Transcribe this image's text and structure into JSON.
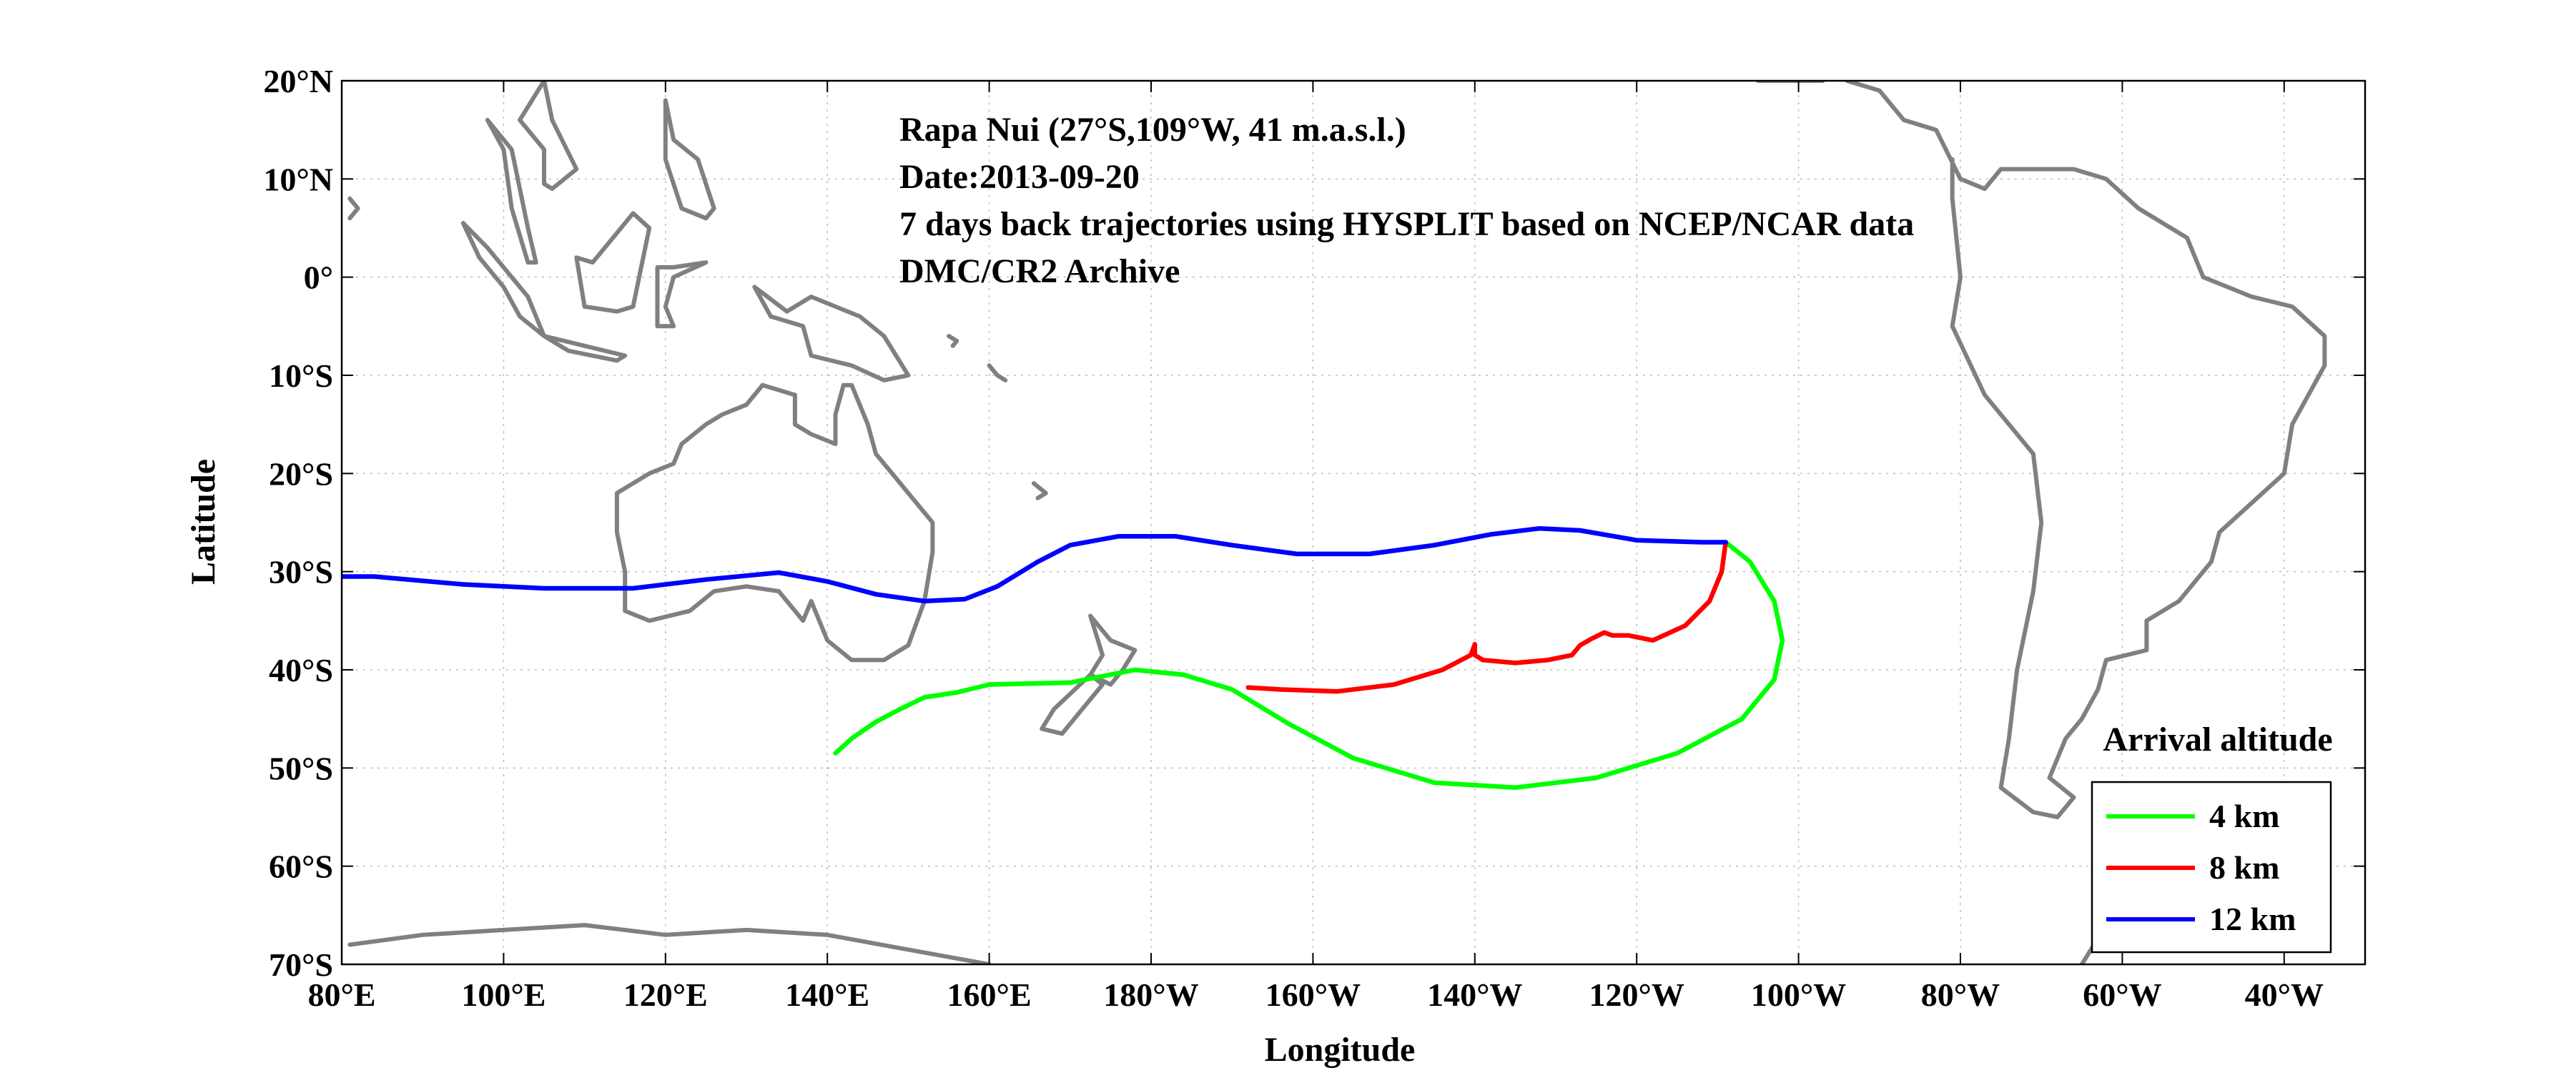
{
  "map": {
    "lon_range": [
      80,
      330
    ],
    "lat_range": [
      -70,
      20
    ],
    "x_ticks": [
      {
        "lon": 80,
        "label": "80°E"
      },
      {
        "lon": 100,
        "label": "100°E"
      },
      {
        "lon": 120,
        "label": "120°E"
      },
      {
        "lon": 140,
        "label": "140°E"
      },
      {
        "lon": 160,
        "label": "160°E"
      },
      {
        "lon": 180,
        "label": "180°W"
      },
      {
        "lon": 200,
        "label": "160°W"
      },
      {
        "lon": 220,
        "label": "140°W"
      },
      {
        "lon": 240,
        "label": "120°W"
      },
      {
        "lon": 260,
        "label": "100°W"
      },
      {
        "lon": 280,
        "label": "80°W"
      },
      {
        "lon": 300,
        "label": "60°W"
      },
      {
        "lon": 320,
        "label": "40°W"
      }
    ],
    "y_ticks": [
      {
        "lat": 20,
        "label": "20°N"
      },
      {
        "lat": 10,
        "label": "10°N"
      },
      {
        "lat": 0,
        "label": "0°"
      },
      {
        "lat": -10,
        "label": "10°S"
      },
      {
        "lat": -20,
        "label": "20°S"
      },
      {
        "lat": -30,
        "label": "30°S"
      },
      {
        "lat": -40,
        "label": "40°S"
      },
      {
        "lat": -50,
        "label": "50°S"
      },
      {
        "lat": -60,
        "label": "60°S"
      },
      {
        "lat": -70,
        "label": "70°S"
      }
    ],
    "xlabel": "Longitude",
    "ylabel": "Latitude",
    "grid": true,
    "annotations": [
      "Rapa Nui (27°S,109°W, 41 m.a.s.l.)",
      "Date:2013-09-20",
      "7 days back trajectories using HYSPLIT based on NCEP/NCAR data",
      "DMC/CR2 Archive"
    ],
    "legend": {
      "title": "Arrival altitude",
      "placement": "bottom-right",
      "items": [
        {
          "label": "4 km",
          "color": "#00ff00"
        },
        {
          "label": "8 km",
          "color": "#ff0000"
        },
        {
          "label": "12 km",
          "color": "#0000ff"
        }
      ]
    },
    "coast_color": "#808080",
    "trajectories": [
      {
        "label": "4 km",
        "color": "#00ff00",
        "points": [
          [
            251,
            -27
          ],
          [
            254,
            -29
          ],
          [
            257,
            -33
          ],
          [
            258,
            -37
          ],
          [
            257,
            -41
          ],
          [
            253,
            -45
          ],
          [
            245,
            -48.5
          ],
          [
            235,
            -51
          ],
          [
            225,
            -52
          ],
          [
            215,
            -51.5
          ],
          [
            205,
            -49
          ],
          [
            197,
            -45.5
          ],
          [
            190,
            -42
          ],
          [
            184,
            -40.5
          ],
          [
            178,
            -40
          ],
          [
            170,
            -41.3
          ],
          [
            160,
            -41.5
          ],
          [
            156,
            -42.3
          ],
          [
            152,
            -42.8
          ],
          [
            149,
            -44
          ],
          [
            146,
            -45.3
          ],
          [
            143,
            -47
          ],
          [
            141,
            -48.5
          ]
        ]
      },
      {
        "label": "8 km",
        "color": "#ff0000",
        "points": [
          [
            251,
            -27
          ],
          [
            250.5,
            -30
          ],
          [
            249,
            -33
          ],
          [
            246,
            -35.5
          ],
          [
            242,
            -37
          ],
          [
            239,
            -36.5
          ],
          [
            237,
            -36.5
          ],
          [
            236,
            -36.2
          ],
          [
            234.5,
            -36.8
          ],
          [
            233,
            -37.5
          ],
          [
            232,
            -38.5
          ],
          [
            229,
            -39
          ],
          [
            225,
            -39.3
          ],
          [
            221,
            -39
          ],
          [
            220,
            -38.5
          ],
          [
            220,
            -37.4
          ],
          [
            219.5,
            -38.5
          ],
          [
            216,
            -40
          ],
          [
            210,
            -41.5
          ],
          [
            203,
            -42.2
          ],
          [
            196,
            -42
          ],
          [
            192,
            -41.8
          ]
        ]
      },
      {
        "label": "12 km",
        "color": "#0000ff",
        "points": [
          [
            251,
            -27
          ],
          [
            248,
            -27
          ],
          [
            240,
            -26.8
          ],
          [
            233,
            -25.8
          ],
          [
            228,
            -25.6
          ],
          [
            222,
            -26.2
          ],
          [
            215,
            -27.3
          ],
          [
            207,
            -28.2
          ],
          [
            198,
            -28.2
          ],
          [
            190,
            -27.3
          ],
          [
            183,
            -26.4
          ],
          [
            176,
            -26.4
          ],
          [
            170,
            -27.3
          ],
          [
            166,
            -29
          ],
          [
            161,
            -31.5
          ],
          [
            157,
            -32.8
          ],
          [
            152,
            -33
          ],
          [
            146,
            -32.3
          ],
          [
            140,
            -31
          ],
          [
            134,
            -30.1
          ],
          [
            125,
            -30.8
          ],
          [
            116,
            -31.7
          ],
          [
            105,
            -31.7
          ],
          [
            95,
            -31.3
          ],
          [
            84,
            -30.5
          ],
          [
            80,
            -30.5
          ]
        ]
      }
    ],
    "coastlines": [
      [
        [
          -81,
          12
        ],
        [
          -81,
          8
        ],
        [
          -80,
          0
        ],
        [
          -81,
          -5
        ],
        [
          -77,
          -12
        ],
        [
          -71,
          -18
        ],
        [
          -70,
          -25
        ],
        [
          -71,
          -32
        ],
        [
          -73,
          -40
        ],
        [
          -74,
          -47
        ],
        [
          -75,
          -52
        ],
        [
          -71,
          -54.5
        ],
        [
          -68,
          -55
        ],
        [
          -66,
          -53
        ],
        [
          -69,
          -51
        ],
        [
          -67,
          -47
        ],
        [
          -65,
          -45
        ],
        [
          -63,
          -42
        ],
        [
          -62,
          -39
        ],
        [
          -57,
          -38
        ],
        [
          -57,
          -35
        ],
        [
          -53,
          -33
        ],
        [
          -49,
          -29
        ],
        [
          -48,
          -26
        ],
        [
          -44,
          -23
        ],
        [
          -40,
          -20
        ],
        [
          -39,
          -15
        ],
        [
          -35,
          -9
        ],
        [
          -35,
          -6
        ],
        [
          -39,
          -3
        ],
        [
          -44,
          -2
        ],
        [
          -50,
          0
        ],
        [
          -52,
          4
        ],
        [
          -58,
          7
        ],
        [
          -62,
          10
        ],
        [
          -66,
          11
        ],
        [
          -71,
          11
        ],
        [
          -75,
          11
        ],
        [
          -77,
          9
        ],
        [
          -80,
          10
        ],
        [
          -83,
          15
        ],
        [
          -87,
          16
        ],
        [
          -90,
          19
        ],
        [
          -94,
          20
        ]
      ],
      [
        [
          -97,
          20
        ],
        [
          -103,
          20
        ],
        [
          -105,
          20
        ],
        [
          -106,
          22
        ]
      ],
      [
        [
          -65,
          -70
        ],
        [
          -62,
          -66
        ],
        [
          -58,
          -63
        ]
      ],
      [
        [
          81,
          -68
        ],
        [
          90,
          -67
        ],
        [
          100,
          -66.5
        ],
        [
          110,
          -66
        ],
        [
          120,
          -67
        ],
        [
          130,
          -66.5
        ],
        [
          140,
          -67
        ],
        [
          150,
          -68.5
        ],
        [
          160,
          -70
        ]
      ],
      [
        [
          114,
          -22
        ],
        [
          114,
          -26
        ],
        [
          115,
          -30
        ],
        [
          115,
          -34
        ],
        [
          118,
          -35
        ],
        [
          123,
          -34
        ],
        [
          126,
          -32
        ],
        [
          130,
          -31.5
        ],
        [
          134,
          -32
        ],
        [
          137,
          -35
        ],
        [
          138,
          -33
        ],
        [
          140,
          -37
        ],
        [
          143,
          -39
        ],
        [
          147,
          -39
        ],
        [
          150,
          -37.5
        ],
        [
          152,
          -33
        ],
        [
          153,
          -28
        ],
        [
          153,
          -25
        ],
        [
          150,
          -22
        ],
        [
          148,
          -20
        ],
        [
          146,
          -18
        ],
        [
          145,
          -15
        ],
        [
          143,
          -11
        ],
        [
          142,
          -11
        ],
        [
          141,
          -14
        ],
        [
          141,
          -17
        ],
        [
          138,
          -16
        ],
        [
          136,
          -15
        ],
        [
          136,
          -12
        ],
        [
          132,
          -11
        ],
        [
          130,
          -13
        ],
        [
          127,
          -14
        ],
        [
          125,
          -15
        ],
        [
          122,
          -17
        ],
        [
          121,
          -19
        ],
        [
          118,
          -20
        ],
        [
          114,
          -22
        ]
      ],
      [
        [
          172.5,
          -34.5
        ],
        [
          175,
          -37
        ],
        [
          178,
          -38
        ],
        [
          176.5,
          -40
        ],
        [
          175,
          -41.5
        ],
        [
          172.5,
          -40.5
        ],
        [
          174,
          -38.5
        ],
        [
          172.5,
          -34.5
        ]
      ],
      [
        [
          172.5,
          -40.5
        ],
        [
          174,
          -41.5
        ],
        [
          171.5,
          -44
        ],
        [
          169,
          -46.5
        ],
        [
          166.5,
          -46
        ],
        [
          168,
          -44
        ],
        [
          172.5,
          -40.5
        ]
      ],
      [
        [
          131,
          -1
        ],
        [
          135,
          -3.5
        ],
        [
          138,
          -2
        ],
        [
          141,
          -3
        ],
        [
          144,
          -4
        ],
        [
          147,
          -6
        ],
        [
          150,
          -10
        ],
        [
          147,
          -10.5
        ],
        [
          143,
          -9
        ],
        [
          138,
          -8
        ],
        [
          137,
          -5
        ],
        [
          133,
          -4
        ],
        [
          131,
          -1
        ]
      ],
      [
        [
          95,
          5.5
        ],
        [
          98,
          3
        ],
        [
          101,
          0
        ],
        [
          103,
          -2
        ],
        [
          105,
          -6
        ],
        [
          102,
          -4
        ],
        [
          100,
          -1
        ],
        [
          97,
          2
        ],
        [
          95,
          5.5
        ]
      ],
      [
        [
          105,
          -6
        ],
        [
          110,
          -7
        ],
        [
          115,
          -8
        ],
        [
          114,
          -8.5
        ],
        [
          108,
          -7.5
        ],
        [
          105,
          -6
        ]
      ],
      [
        [
          109,
          2
        ],
        [
          111,
          1.5
        ],
        [
          113,
          3.5
        ],
        [
          116,
          6.5
        ],
        [
          118,
          5
        ],
        [
          117,
          1
        ],
        [
          116,
          -3
        ],
        [
          114,
          -3.5
        ],
        [
          110,
          -3
        ],
        [
          109,
          2
        ]
      ],
      [
        [
          119,
          1
        ],
        [
          121,
          1
        ],
        [
          125,
          1.5
        ],
        [
          121,
          0
        ],
        [
          120,
          -3
        ],
        [
          121,
          -5
        ],
        [
          119,
          -5
        ],
        [
          119,
          1
        ]
      ],
      [
        [
          120,
          18
        ],
        [
          121,
          14
        ],
        [
          124,
          12
        ],
        [
          126,
          7
        ],
        [
          125,
          6
        ],
        [
          122,
          7
        ],
        [
          120,
          12
        ],
        [
          120,
          18
        ]
      ],
      [
        [
          98,
          16
        ],
        [
          100,
          13
        ],
        [
          101,
          7
        ],
        [
          103,
          1.5
        ],
        [
          104,
          1.5
        ],
        [
          103,
          5
        ],
        [
          101,
          13
        ],
        [
          98,
          16
        ]
      ],
      [
        [
          105,
          20
        ],
        [
          106,
          16
        ],
        [
          109,
          11
        ],
        [
          106,
          9
        ],
        [
          105,
          9.5
        ],
        [
          105,
          13
        ],
        [
          102,
          16
        ],
        [
          105,
          20
        ]
      ],
      [
        [
          81,
          8
        ],
        [
          82,
          7
        ],
        [
          81,
          6
        ]
      ],
      [
        [
          155,
          -6
        ],
        [
          156,
          -6.5
        ],
        [
          155.5,
          -7
        ]
      ],
      [
        [
          160,
          -9
        ],
        [
          161,
          -10
        ],
        [
          162,
          -10.5
        ]
      ],
      [
        [
          165.5,
          -21
        ],
        [
          167,
          -22
        ],
        [
          166,
          -22.5
        ]
      ]
    ]
  }
}
